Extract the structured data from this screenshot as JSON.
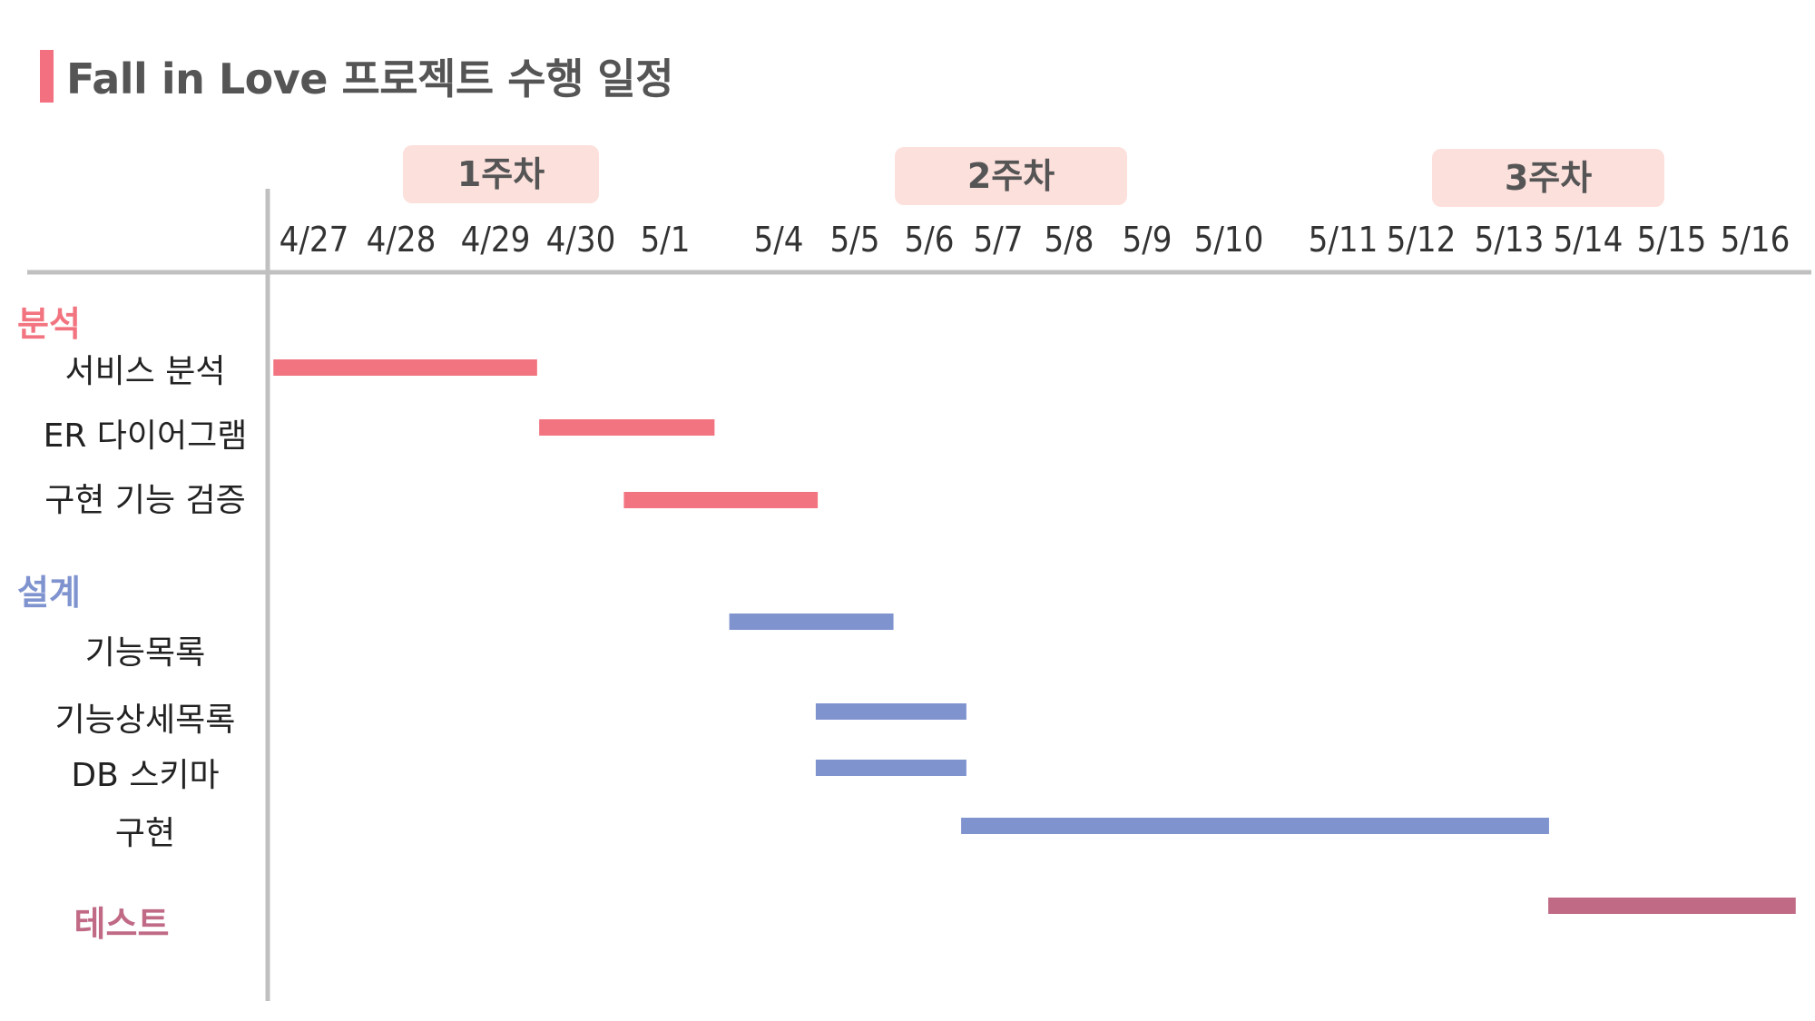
{
  "title": "Fall in Love 프로젝트 수행 일정",
  "colors": {
    "accent": "#f2707f",
    "analysis": "#f27480",
    "design": "#7f93cf",
    "test": "#c06a85",
    "week_badge": "#fce0dc",
    "axis": "#c0c0c0"
  },
  "chart_data": {
    "type": "gantt",
    "title": "Fall in Love 프로젝트 수행 일정",
    "weeks": [
      {
        "label": "1주차",
        "start": "4/27",
        "end": "5/1"
      },
      {
        "label": "2주차",
        "start": "5/4",
        "end": "5/10"
      },
      {
        "label": "3주차",
        "start": "5/11",
        "end": "5/16"
      }
    ],
    "dates": [
      "4/27",
      "4/28",
      "4/29",
      "4/30",
      "5/1",
      "5/4",
      "5/5",
      "5/6",
      "5/7",
      "5/8",
      "5/9",
      "5/10",
      "5/11",
      "5/12",
      "5/13",
      "5/14",
      "5/15",
      "5/16"
    ],
    "categories": [
      {
        "label": "분석",
        "color": "#f27480",
        "tasks": [
          {
            "label": "서비스 분석",
            "start": "4/27",
            "end": "4/29"
          },
          {
            "label": "ER 다이어그램",
            "start": "4/30",
            "end": "5/1"
          },
          {
            "label": "구현 기능 검증",
            "start": "5/1",
            "end": "5/4"
          }
        ]
      },
      {
        "label": "설계",
        "color": "#7f93cf",
        "tasks": [
          {
            "label": "기능목록",
            "start": "5/4",
            "end": "5/5"
          },
          {
            "label": "기능상세목록",
            "start": "5/5",
            "end": "5/6"
          },
          {
            "label": "DB 스키마",
            "start": "5/5",
            "end": "5/6"
          },
          {
            "label": "구현",
            "start": "5/7",
            "end": "5/13"
          }
        ]
      },
      {
        "label": "테스트",
        "color": "#c06a85",
        "tasks": [
          {
            "label": "",
            "start": "5/14",
            "end": "5/16"
          }
        ]
      }
    ]
  }
}
